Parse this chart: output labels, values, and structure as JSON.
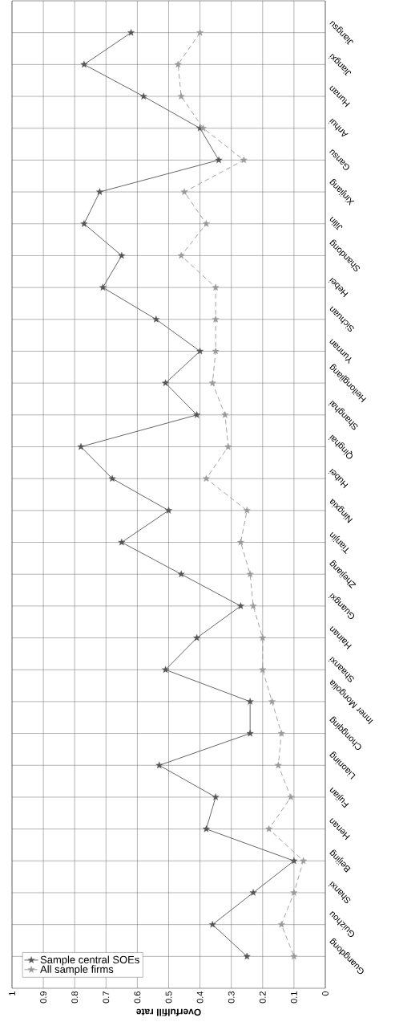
{
  "chart_data": {
    "type": "line",
    "orientation": "horizontal",
    "xlabel": "Overfulfill rate",
    "categories": [
      "Jiangsu",
      "Jiangxi",
      "Hunan",
      "Anhui",
      "Gansu",
      "Xinjiang",
      "Jilin",
      "Shandong",
      "Hebei",
      "Sichuan",
      "Yunnan",
      "Heilongjiang",
      "Shanghai",
      "Qinghai",
      "Hubei",
      "Ningxia",
      "Tianjin",
      "Zhejiang",
      "Guangxi",
      "Hainan",
      "Shaanxi",
      "Inner Mongolia",
      "Chongqing",
      "Liaoning",
      "Fujian",
      "Henan",
      "Beijing",
      "Shanxi",
      "Guizhou",
      "Guangdong"
    ],
    "series": [
      {
        "name": "Sample central SOEs",
        "color": "#555555",
        "line_style": "solid",
        "values": [
          0.62,
          0.77,
          0.58,
          0.4,
          0.34,
          0.72,
          0.77,
          0.65,
          0.71,
          0.54,
          0.4,
          0.51,
          0.41,
          0.78,
          0.68,
          0.5,
          0.65,
          0.46,
          0.27,
          0.41,
          0.51,
          0.24,
          0.24,
          0.53,
          0.35,
          0.38,
          0.1,
          0.23,
          0.36,
          0.25
        ]
      },
      {
        "name": "All sample firms",
        "color": "#999999",
        "line_style": "dashed",
        "values": [
          0.4,
          0.47,
          0.46,
          0.39,
          0.26,
          0.45,
          0.38,
          0.46,
          0.35,
          0.35,
          0.35,
          0.36,
          0.32,
          0.31,
          0.38,
          0.25,
          0.27,
          0.24,
          0.23,
          0.2,
          0.2,
          0.17,
          0.14,
          0.15,
          0.11,
          0.18,
          0.07,
          0.1,
          0.14,
          0.1
        ]
      }
    ],
    "xlim": [
      1,
      0
    ],
    "xticks": [
      0,
      0.1,
      0.2,
      0.3,
      0.4,
      0.5,
      0.6,
      0.7,
      0.8,
      0.9,
      1
    ],
    "grid": true,
    "legend": "bottom left",
    "marker": "star"
  }
}
